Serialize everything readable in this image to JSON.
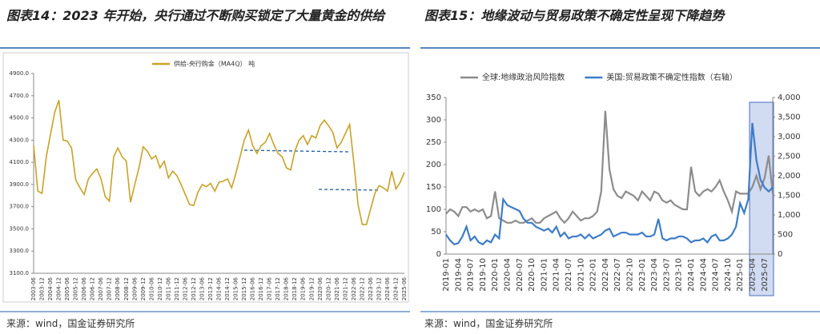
{
  "titles": [
    "图表14：2023 年开始，央行通过不断购买锁定了大量黄金的供给",
    "图表15：地缘波动与贸易政策不确定性呈现下降趋势"
  ],
  "sources": [
    "来源：wind，国金证券研究所",
    "来源：wind，国金证券研究所"
  ],
  "chart_data": [
    {
      "type": "line",
      "categories": [
        "2003-06",
        null,
        "2003-12",
        null,
        "2004-06",
        null,
        "2004-12",
        null,
        "2005-06",
        null,
        "2005-12",
        null,
        "2006-06",
        null,
        "2006-12",
        null,
        "2007-06",
        null,
        "2007-12",
        null,
        "2008-06",
        null,
        "2008-12",
        null,
        "2009-06",
        null,
        "2009-12",
        null,
        "2010-06",
        null,
        "2010-12",
        null,
        "2011-06",
        null,
        "2011-12",
        null,
        "2012-06",
        null,
        "2012-12",
        null,
        "2013-06",
        null,
        "2013-12",
        null,
        "2014-06",
        null,
        "2014-12",
        null,
        "2015-06",
        null,
        "2015-12",
        null,
        "2016-06",
        null,
        "2016-12",
        null,
        "2017-06",
        null,
        "2017-12",
        null,
        "2018-06",
        null,
        "2018-12",
        null,
        "2019-06",
        null,
        "2019-12",
        null,
        "2020-06",
        null,
        "2020-12",
        null,
        "2021-06",
        null,
        "2021-12",
        null,
        "2022-06",
        null,
        "2022-12",
        null,
        "2023-06",
        null,
        "2023-12",
        null,
        "2024-06",
        null,
        "2024-12",
        null,
        "2025-06"
      ],
      "series": [
        {
          "name": "供给-央行购金（MA4Q） 吨",
          "color": "#c9a227",
          "values": [
            4250,
            3840,
            3820,
            4150,
            4350,
            4550,
            4660,
            4300,
            4290,
            4230,
            3940,
            3870,
            3810,
            3950,
            4000,
            4040,
            3950,
            3790,
            3750,
            4150,
            4230,
            4150,
            4110,
            3740,
            3900,
            4050,
            4240,
            4200,
            4130,
            4160,
            4050,
            4110,
            3960,
            4020,
            3980,
            3900,
            3810,
            3720,
            3710,
            3830,
            3900,
            3880,
            3910,
            3840,
            3920,
            3930,
            3950,
            3870,
            4000,
            4150,
            4300,
            4390,
            4250,
            4180,
            4250,
            4280,
            4360,
            4260,
            4180,
            4150,
            4050,
            4030,
            4200,
            4300,
            4340,
            4260,
            4340,
            4320,
            4430,
            4480,
            4430,
            4370,
            4230,
            4280,
            4360,
            4440,
            4100,
            3720,
            3540,
            3540,
            3680,
            3820,
            3890,
            3870,
            3840,
            4020,
            3860,
            3920,
            4010
          ]
        }
      ],
      "ylim": [
        3100,
        4900
      ],
      "yticks": [
        {
          "value": 3100,
          "label": "3100.0"
        },
        {
          "value": 3300,
          "label": "3300.0"
        },
        {
          "value": 3500,
          "label": "3500.0"
        },
        {
          "value": 3700,
          "label": "3700.0"
        },
        {
          "value": 3900,
          "label": "3900.0"
        },
        {
          "value": 4100,
          "label": "4100.0"
        },
        {
          "value": 4300,
          "label": "4300.0"
        },
        {
          "value": 4500,
          "label": "4500.0"
        },
        {
          "value": 4700,
          "label": "4700.0"
        },
        {
          "value": 4900,
          "label": "4900.0"
        }
      ]
    },
    {
      "type": "line",
      "categories": [
        "2019-01",
        null,
        null,
        "2019-04",
        null,
        null,
        "2019-07",
        null,
        null,
        "2019-10",
        null,
        null,
        "2020-01",
        null,
        null,
        "2020-04",
        null,
        null,
        "2020-07",
        null,
        null,
        "2020-10",
        null,
        null,
        "2021-01",
        null,
        null,
        "2021-04",
        null,
        null,
        "2021-07",
        null,
        null,
        "2021-10",
        null,
        null,
        "2022-01",
        null,
        null,
        "2022-04",
        null,
        null,
        "2022-07",
        null,
        null,
        "2022-10",
        null,
        null,
        "2023-01",
        null,
        null,
        "2023-04",
        null,
        null,
        "2023-07",
        null,
        null,
        "2023-10",
        null,
        null,
        "2024-01",
        null,
        null,
        "2024-04",
        null,
        null,
        "2024-07",
        null,
        null,
        "2024-10",
        null,
        null,
        "2025-01",
        null,
        null,
        "2025-04",
        null,
        null,
        "2025-07",
        null,
        null
      ],
      "series": [
        {
          "name": "全球:地缘政治风险指数",
          "color": "#8c8c8c",
          "values": [
            90,
            100,
            95,
            85,
            105,
            105,
            95,
            100,
            95,
            100,
            80,
            85,
            140,
            80,
            75,
            70,
            70,
            75,
            70,
            70,
            75,
            80,
            70,
            70,
            80,
            85,
            90,
            95,
            80,
            70,
            80,
            95,
            85,
            75,
            80,
            80,
            85,
            95,
            140,
            320,
            190,
            145,
            130,
            125,
            140,
            135,
            130,
            120,
            140,
            130,
            120,
            140,
            135,
            120,
            115,
            120,
            110,
            105,
            100,
            100,
            195,
            140,
            130,
            140,
            145,
            140,
            150,
            165,
            140,
            120,
            95,
            140,
            135,
            135,
            135,
            150,
            175,
            145,
            170,
            220,
            135
          ]
        },
        {
          "name": "美国:贸易政策不确定性指数（右轴）",
          "color": "#3d7cc9",
          "axis": "y2",
          "values": [
            500,
            350,
            250,
            280,
            450,
            700,
            350,
            450,
            300,
            250,
            350,
            300,
            500,
            400,
            1400,
            1250,
            1200,
            1150,
            1100,
            900,
            800,
            800,
            700,
            650,
            600,
            650,
            550,
            700,
            450,
            550,
            400,
            450,
            450,
            500,
            400,
            500,
            400,
            450,
            500,
            600,
            650,
            450,
            500,
            550,
            550,
            500,
            500,
            500,
            550,
            450,
            450,
            500,
            900,
            400,
            350,
            400,
            400,
            450,
            450,
            400,
            300,
            350,
            350,
            400,
            300,
            450,
            500,
            350,
            350,
            400,
            500,
            700,
            1300,
            1050,
            1400,
            3350,
            2400,
            1900,
            1700,
            1600,
            1700
          ]
        }
      ],
      "ylim": [
        0,
        350
      ],
      "yticks": [
        0,
        50,
        100,
        150,
        200,
        250,
        300,
        350
      ],
      "y2lim": [
        0,
        4000
      ],
      "y2ticks": [
        0,
        500,
        {
          "value": 1000,
          "label": "1,000"
        },
        {
          "value": 1500,
          "label": "1,500"
        },
        {
          "value": 2000,
          "label": "2,000"
        },
        {
          "value": 2500,
          "label": "2,500"
        },
        {
          "value": 3000,
          "label": "3,000"
        },
        {
          "value": 3500,
          "label": "3,500"
        },
        {
          "value": 4000,
          "label": "4,000"
        }
      ]
    }
  ]
}
